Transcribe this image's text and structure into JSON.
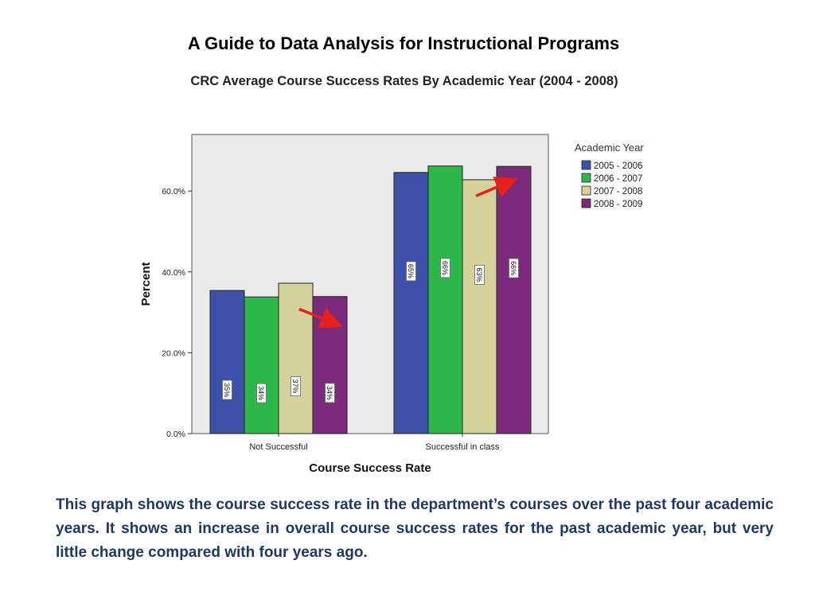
{
  "page": {
    "title": "A Guide to Data Analysis for Instructional Programs",
    "caption": "This graph shows the course success rate in the department’s courses over the past four  academic years.  It shows an increase in overall course success rates for the past academic year, but very little change compared with four years ago."
  },
  "chart_data": {
    "type": "bar",
    "title": "CRC Average Course Success Rates By Academic Year (2004 - 2008)",
    "xlabel": "Course Success Rate",
    "ylabel": "Percent",
    "categories": [
      "Not Successful",
      "Successful in class"
    ],
    "ylim": [
      0,
      74
    ],
    "yticks": [
      "0.0%",
      "20.0%",
      "40.0%",
      "60.0%"
    ],
    "ytick_values": [
      0,
      20,
      40,
      60
    ],
    "grid": false,
    "legend": {
      "title": "Academic Year",
      "placement": "right"
    },
    "series": [
      {
        "name": "2005 - 2006",
        "color": "#3d51a8",
        "values": [
          35.4,
          64.6
        ],
        "labels": [
          "35%",
          "65%"
        ]
      },
      {
        "name": "2006 - 2007",
        "color": "#2db84a",
        "values": [
          33.8,
          66.2
        ],
        "labels": [
          "34%",
          "66%"
        ]
      },
      {
        "name": "2007 - 2008",
        "color": "#d4d29a",
        "values": [
          37.2,
          62.8
        ],
        "labels": [
          "37%",
          "63%"
        ]
      },
      {
        "name": "2008 - 2009",
        "color": "#7b2a7c",
        "values": [
          33.9,
          66.1
        ],
        "labels": [
          "34%",
          "66%"
        ]
      }
    ],
    "annotations": [
      {
        "type": "arrow",
        "color": "#e8201a",
        "from": [
          1,
          30.8
        ],
        "to": [
          1,
          27.0
        ],
        "near": "Not Successful / 2008 - 2009"
      },
      {
        "type": "arrow",
        "color": "#e8201a",
        "from": [
          2,
          58.8
        ],
        "to": [
          2,
          62.6
        ],
        "near": "Successful in class / 2008 - 2009"
      }
    ],
    "plot_background": "#eaeaea"
  }
}
